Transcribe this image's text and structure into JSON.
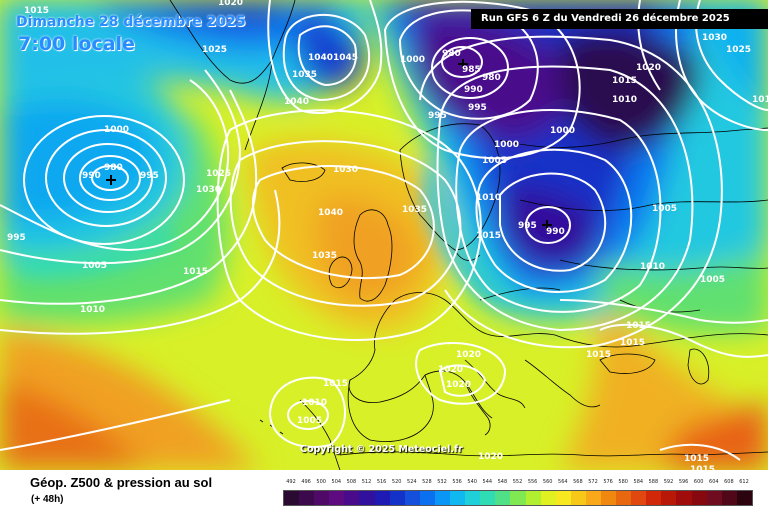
{
  "header": {
    "date": "Dimanche 28 décembre 2025",
    "time": "7:00 locale",
    "run": "Run GFS 6 Z du Vendredi 26 décembre 2025"
  },
  "footer": {
    "title": "Géop. Z500 & pression au sol",
    "subtitle": "(+ 48h)",
    "copyright": "Copyright © 2025 Meteociel.fr"
  },
  "scale": {
    "labels": [
      "492",
      "496",
      "500",
      "504",
      "508",
      "512",
      "516",
      "520",
      "524",
      "528",
      "532",
      "536",
      "540",
      "544",
      "548",
      "552",
      "556",
      "560",
      "564",
      "568",
      "572",
      "576",
      "580",
      "584",
      "588",
      "592",
      "596",
      "600",
      "604",
      "608",
      "612"
    ],
    "colors": [
      "#2a0a30",
      "#3c0a4c",
      "#4e0a66",
      "#5e0a80",
      "#4a0a8c",
      "#30109c",
      "#1e1ab4",
      "#1432c8",
      "#1450dc",
      "#0a70f0",
      "#0a96f4",
      "#10b8f0",
      "#20d0d8",
      "#30dcb4",
      "#50e088",
      "#80e850",
      "#b0f030",
      "#e0f020",
      "#f8e820",
      "#f8c818",
      "#f8a818",
      "#f08810",
      "#e86810",
      "#e04810",
      "#d02808",
      "#b81808",
      "#a00c0c",
      "#880810",
      "#700c20",
      "#500818",
      "#2c0410"
    ]
  },
  "pressure_labels": [
    "1000",
    "980",
    "990",
    "995",
    "1015",
    "1020",
    "1025",
    "1030",
    "1035",
    "1040",
    "1045",
    "1005",
    "1010",
    "985"
  ],
  "map": {
    "colors": {
      "deep_low": "#4a0a6e",
      "low": "#1e1ab4",
      "mid_blue": "#0a96f4",
      "cyan": "#20d0d8",
      "green": "#80e850",
      "yellow": "#e8f020",
      "orange": "#f0a020",
      "contour": "#ffffff",
      "coast": "#000000"
    }
  }
}
